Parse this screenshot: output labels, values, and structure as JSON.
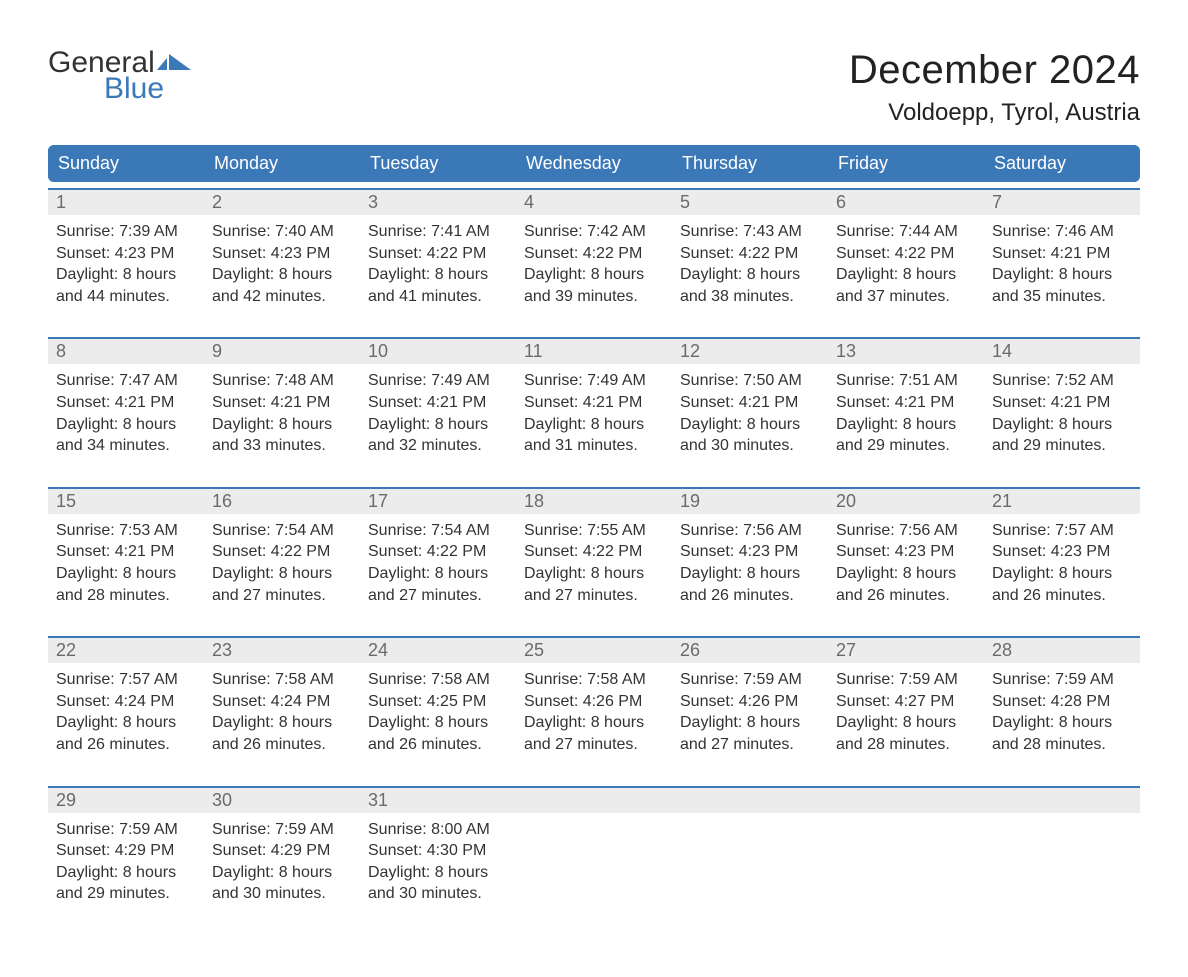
{
  "brand": {
    "part1": "General",
    "part2": "Blue",
    "flag_color": "#3b78b8",
    "text_dark": "#333333"
  },
  "header": {
    "month": "December 2024",
    "location": "Voldoepp, Tyrol, Austria"
  },
  "colors": {
    "header_bg": "#3b78b8",
    "header_text": "#ffffff",
    "date_bg": "#ececec",
    "date_text": "#6b6b6b",
    "body_text": "#333333",
    "rule": "#3b78b8"
  },
  "day_names": [
    "Sunday",
    "Monday",
    "Tuesday",
    "Wednesday",
    "Thursday",
    "Friday",
    "Saturday"
  ],
  "weeks": [
    [
      {
        "d": "1",
        "sr": "Sunrise: 7:39 AM",
        "ss": "Sunset: 4:23 PM",
        "dl1": "Daylight: 8 hours",
        "dl2": "and 44 minutes."
      },
      {
        "d": "2",
        "sr": "Sunrise: 7:40 AM",
        "ss": "Sunset: 4:23 PM",
        "dl1": "Daylight: 8 hours",
        "dl2": "and 42 minutes."
      },
      {
        "d": "3",
        "sr": "Sunrise: 7:41 AM",
        "ss": "Sunset: 4:22 PM",
        "dl1": "Daylight: 8 hours",
        "dl2": "and 41 minutes."
      },
      {
        "d": "4",
        "sr": "Sunrise: 7:42 AM",
        "ss": "Sunset: 4:22 PM",
        "dl1": "Daylight: 8 hours",
        "dl2": "and 39 minutes."
      },
      {
        "d": "5",
        "sr": "Sunrise: 7:43 AM",
        "ss": "Sunset: 4:22 PM",
        "dl1": "Daylight: 8 hours",
        "dl2": "and 38 minutes."
      },
      {
        "d": "6",
        "sr": "Sunrise: 7:44 AM",
        "ss": "Sunset: 4:22 PM",
        "dl1": "Daylight: 8 hours",
        "dl2": "and 37 minutes."
      },
      {
        "d": "7",
        "sr": "Sunrise: 7:46 AM",
        "ss": "Sunset: 4:21 PM",
        "dl1": "Daylight: 8 hours",
        "dl2": "and 35 minutes."
      }
    ],
    [
      {
        "d": "8",
        "sr": "Sunrise: 7:47 AM",
        "ss": "Sunset: 4:21 PM",
        "dl1": "Daylight: 8 hours",
        "dl2": "and 34 minutes."
      },
      {
        "d": "9",
        "sr": "Sunrise: 7:48 AM",
        "ss": "Sunset: 4:21 PM",
        "dl1": "Daylight: 8 hours",
        "dl2": "and 33 minutes."
      },
      {
        "d": "10",
        "sr": "Sunrise: 7:49 AM",
        "ss": "Sunset: 4:21 PM",
        "dl1": "Daylight: 8 hours",
        "dl2": "and 32 minutes."
      },
      {
        "d": "11",
        "sr": "Sunrise: 7:49 AM",
        "ss": "Sunset: 4:21 PM",
        "dl1": "Daylight: 8 hours",
        "dl2": "and 31 minutes."
      },
      {
        "d": "12",
        "sr": "Sunrise: 7:50 AM",
        "ss": "Sunset: 4:21 PM",
        "dl1": "Daylight: 8 hours",
        "dl2": "and 30 minutes."
      },
      {
        "d": "13",
        "sr": "Sunrise: 7:51 AM",
        "ss": "Sunset: 4:21 PM",
        "dl1": "Daylight: 8 hours",
        "dl2": "and 29 minutes."
      },
      {
        "d": "14",
        "sr": "Sunrise: 7:52 AM",
        "ss": "Sunset: 4:21 PM",
        "dl1": "Daylight: 8 hours",
        "dl2": "and 29 minutes."
      }
    ],
    [
      {
        "d": "15",
        "sr": "Sunrise: 7:53 AM",
        "ss": "Sunset: 4:21 PM",
        "dl1": "Daylight: 8 hours",
        "dl2": "and 28 minutes."
      },
      {
        "d": "16",
        "sr": "Sunrise: 7:54 AM",
        "ss": "Sunset: 4:22 PM",
        "dl1": "Daylight: 8 hours",
        "dl2": "and 27 minutes."
      },
      {
        "d": "17",
        "sr": "Sunrise: 7:54 AM",
        "ss": "Sunset: 4:22 PM",
        "dl1": "Daylight: 8 hours",
        "dl2": "and 27 minutes."
      },
      {
        "d": "18",
        "sr": "Sunrise: 7:55 AM",
        "ss": "Sunset: 4:22 PM",
        "dl1": "Daylight: 8 hours",
        "dl2": "and 27 minutes."
      },
      {
        "d": "19",
        "sr": "Sunrise: 7:56 AM",
        "ss": "Sunset: 4:23 PM",
        "dl1": "Daylight: 8 hours",
        "dl2": "and 26 minutes."
      },
      {
        "d": "20",
        "sr": "Sunrise: 7:56 AM",
        "ss": "Sunset: 4:23 PM",
        "dl1": "Daylight: 8 hours",
        "dl2": "and 26 minutes."
      },
      {
        "d": "21",
        "sr": "Sunrise: 7:57 AM",
        "ss": "Sunset: 4:23 PM",
        "dl1": "Daylight: 8 hours",
        "dl2": "and 26 minutes."
      }
    ],
    [
      {
        "d": "22",
        "sr": "Sunrise: 7:57 AM",
        "ss": "Sunset: 4:24 PM",
        "dl1": "Daylight: 8 hours",
        "dl2": "and 26 minutes."
      },
      {
        "d": "23",
        "sr": "Sunrise: 7:58 AM",
        "ss": "Sunset: 4:24 PM",
        "dl1": "Daylight: 8 hours",
        "dl2": "and 26 minutes."
      },
      {
        "d": "24",
        "sr": "Sunrise: 7:58 AM",
        "ss": "Sunset: 4:25 PM",
        "dl1": "Daylight: 8 hours",
        "dl2": "and 26 minutes."
      },
      {
        "d": "25",
        "sr": "Sunrise: 7:58 AM",
        "ss": "Sunset: 4:26 PM",
        "dl1": "Daylight: 8 hours",
        "dl2": "and 27 minutes."
      },
      {
        "d": "26",
        "sr": "Sunrise: 7:59 AM",
        "ss": "Sunset: 4:26 PM",
        "dl1": "Daylight: 8 hours",
        "dl2": "and 27 minutes."
      },
      {
        "d": "27",
        "sr": "Sunrise: 7:59 AM",
        "ss": "Sunset: 4:27 PM",
        "dl1": "Daylight: 8 hours",
        "dl2": "and 28 minutes."
      },
      {
        "d": "28",
        "sr": "Sunrise: 7:59 AM",
        "ss": "Sunset: 4:28 PM",
        "dl1": "Daylight: 8 hours",
        "dl2": "and 28 minutes."
      }
    ],
    [
      {
        "d": "29",
        "sr": "Sunrise: 7:59 AM",
        "ss": "Sunset: 4:29 PM",
        "dl1": "Daylight: 8 hours",
        "dl2": "and 29 minutes."
      },
      {
        "d": "30",
        "sr": "Sunrise: 7:59 AM",
        "ss": "Sunset: 4:29 PM",
        "dl1": "Daylight: 8 hours",
        "dl2": "and 30 minutes."
      },
      {
        "d": "31",
        "sr": "Sunrise: 8:00 AM",
        "ss": "Sunset: 4:30 PM",
        "dl1": "Daylight: 8 hours",
        "dl2": "and 30 minutes."
      },
      null,
      null,
      null,
      null
    ]
  ]
}
